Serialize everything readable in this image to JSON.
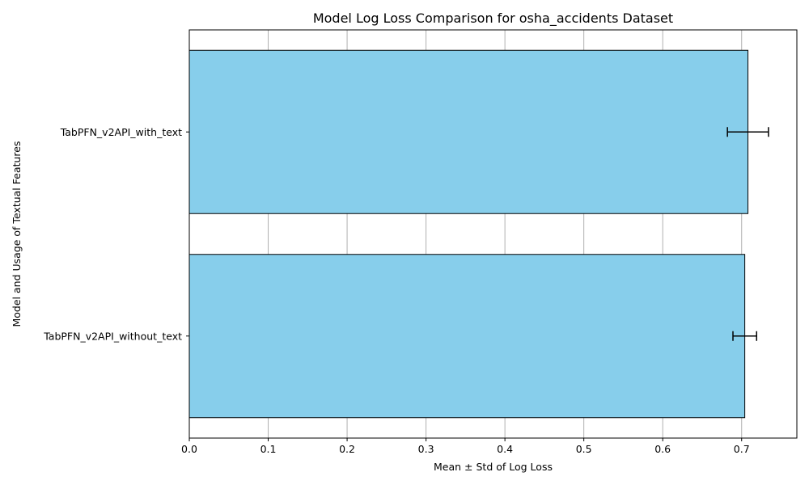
{
  "chart_data": {
    "type": "bar",
    "orientation": "horizontal",
    "title": "Model Log Loss Comparison for osha_accidents Dataset",
    "xlabel": "Mean ± Std of Log Loss",
    "ylabel": "Model and Usage of Textual Features",
    "categories": [
      "TabPFN_v2API_with_text",
      "TabPFN_v2API_without_text"
    ],
    "values": [
      0.708,
      0.704
    ],
    "errors": [
      0.026,
      0.015
    ],
    "xlim": [
      0.0,
      0.77
    ],
    "xticks": [
      0.0,
      0.1,
      0.2,
      0.3,
      0.4,
      0.5,
      0.6,
      0.7
    ],
    "xtick_labels": [
      "0.0",
      "0.1",
      "0.2",
      "0.3",
      "0.4",
      "0.5",
      "0.6",
      "0.7"
    ],
    "grid": "x-major",
    "colors": {
      "bar_fill": "#87CEEB",
      "bar_edge": "#000000",
      "grid": "#b0b0b0",
      "error_bar": "#000000"
    }
  }
}
